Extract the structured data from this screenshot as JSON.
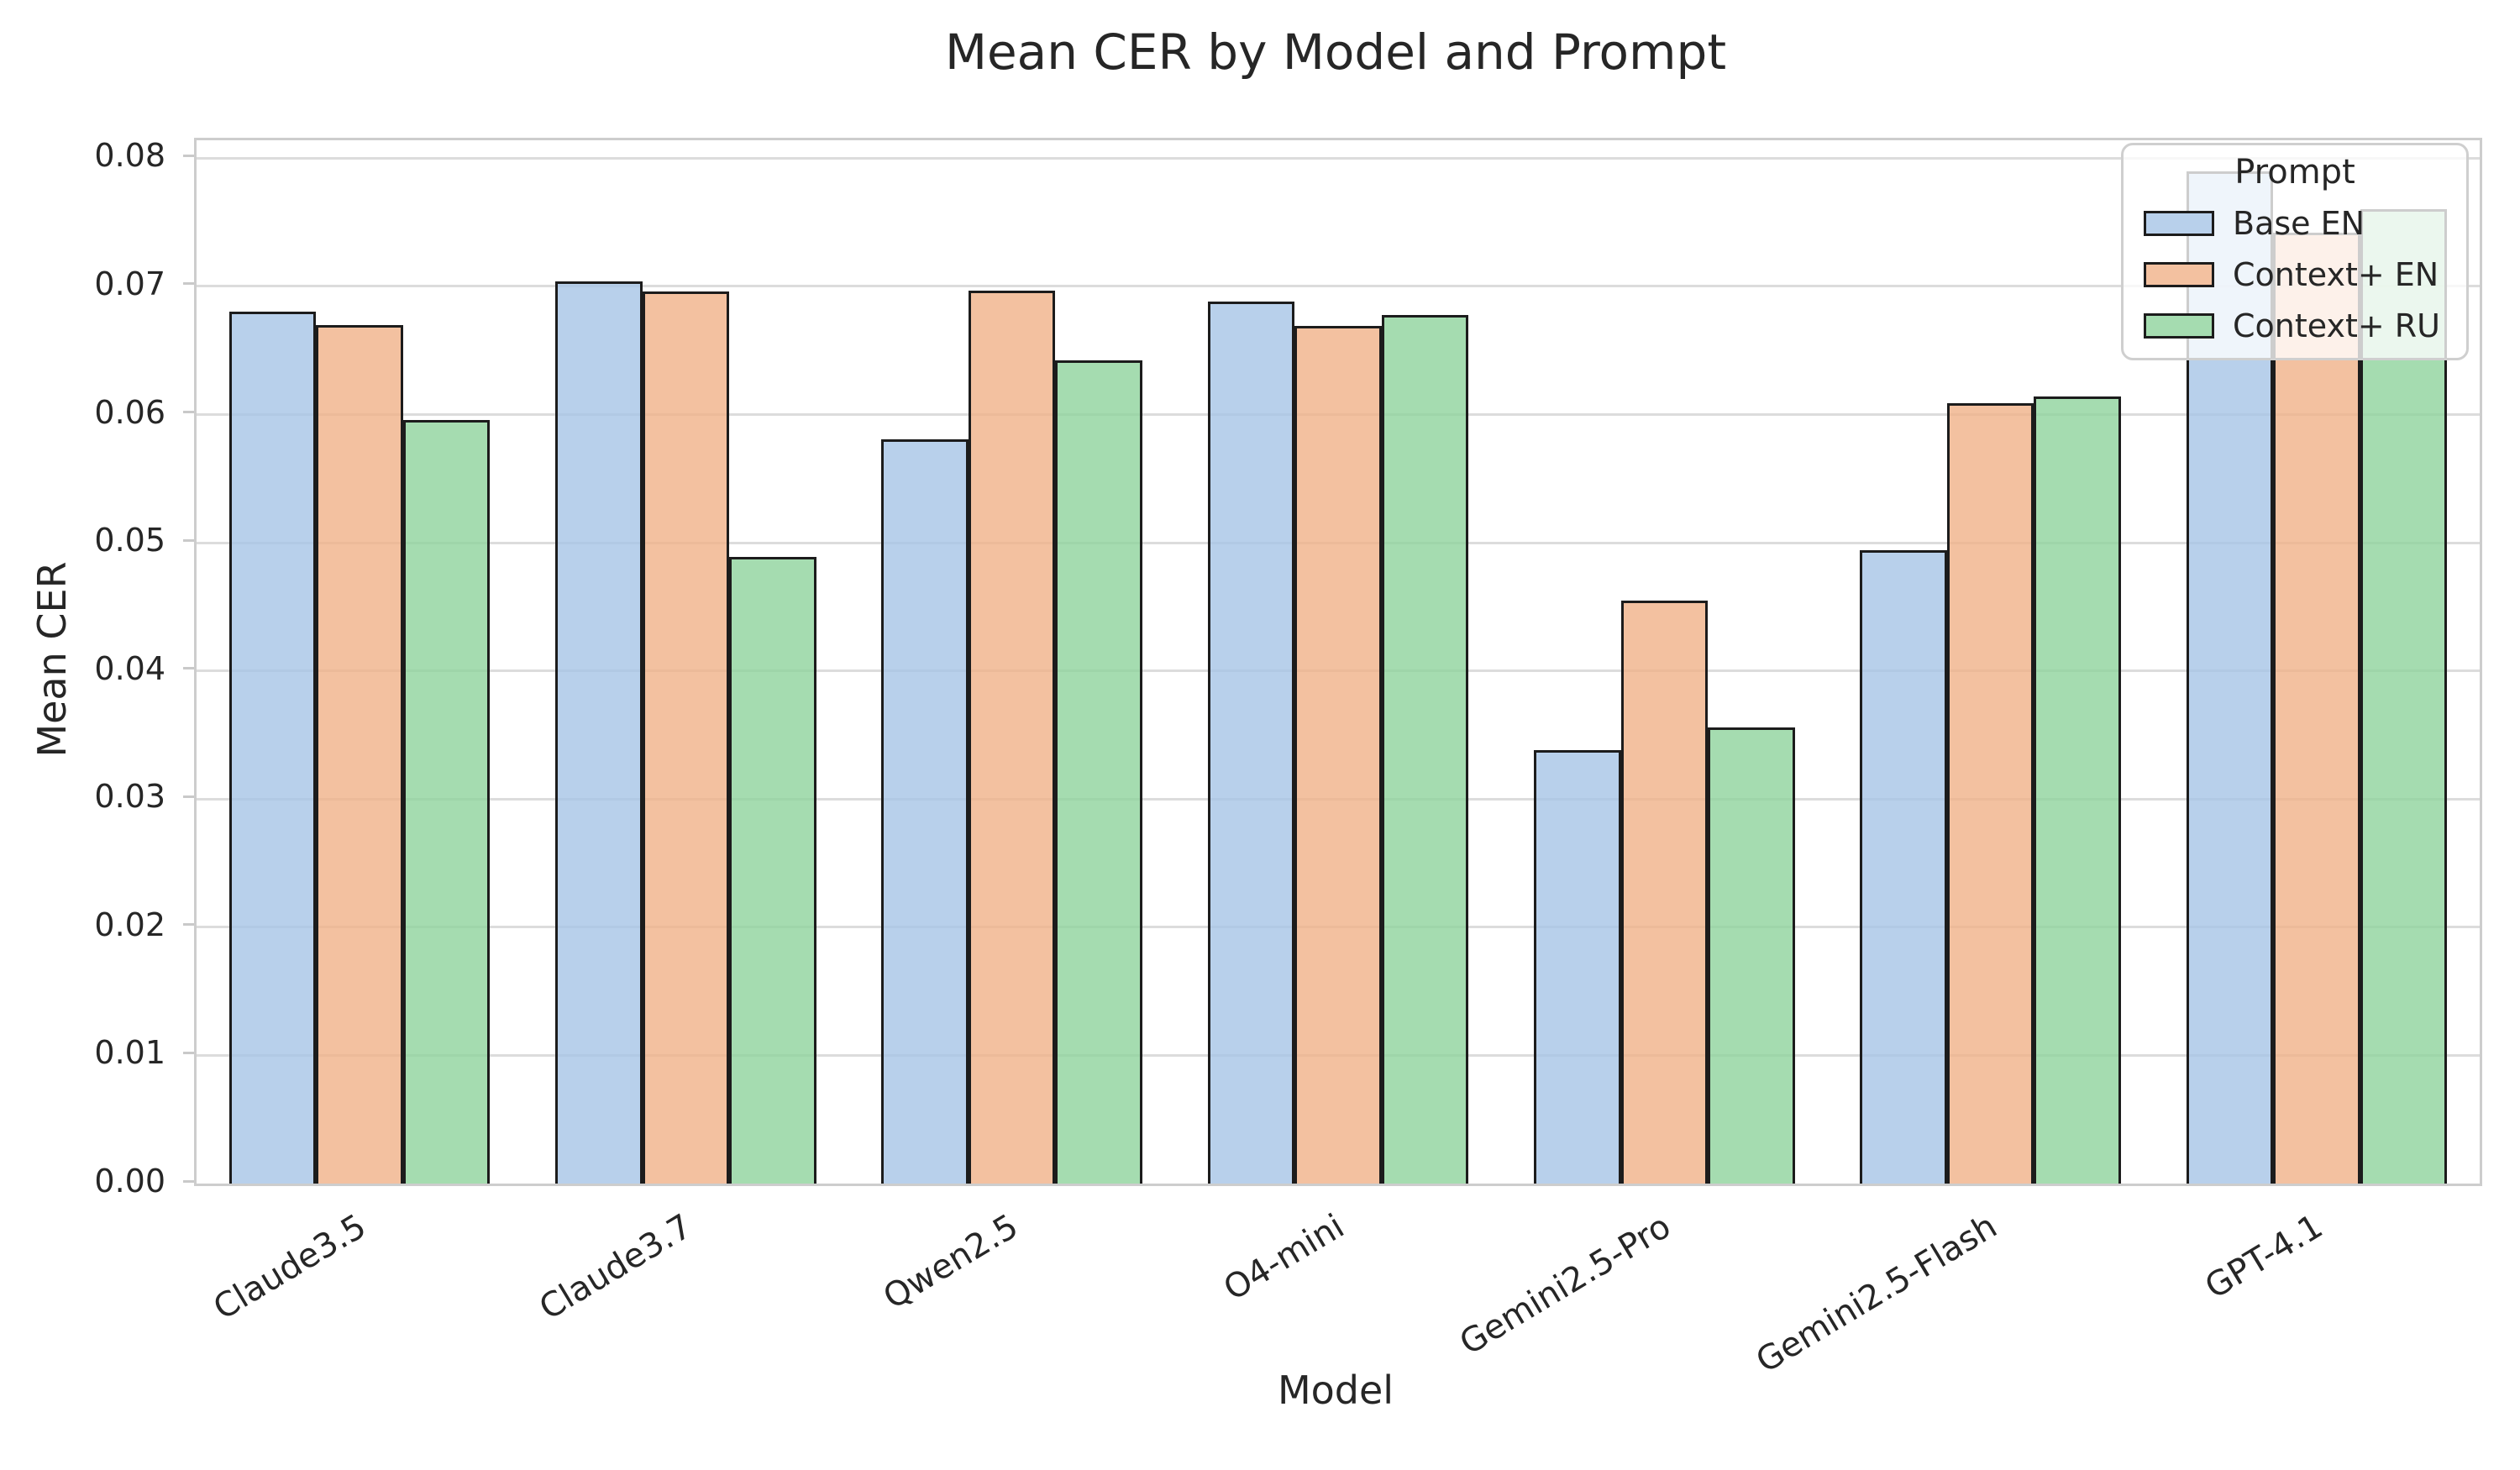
{
  "chart_data": {
    "type": "bar",
    "title": "Mean CER by Model and Prompt",
    "xlabel": "Model",
    "ylabel": "Mean CER",
    "legend_title": "Prompt",
    "legend_position": "upper right",
    "grid": true,
    "ylim": [
      0,
      0.0814
    ],
    "ytick_values": [
      0,
      0.01,
      0.02,
      0.03,
      0.04,
      0.05,
      0.06,
      0.07,
      0.08
    ],
    "yticks": [
      "0.00",
      "0.01",
      "0.02",
      "0.03",
      "0.04",
      "0.05",
      "0.06",
      "0.07",
      "0.08"
    ],
    "categories": [
      "Claude3.5",
      "Claude3.7",
      "Qwen2.5",
      "O4-mini",
      "Gemini2.5-Pro",
      "Gemini2.5-Flash",
      "GPT-4.1"
    ],
    "series": [
      {
        "name": "Base EN",
        "color": "#a6c4e6",
        "legend_color": "#b8d0eb",
        "values": [
          0.068,
          0.0704,
          0.0581,
          0.0688,
          0.0338,
          0.0494,
          0.079
        ]
      },
      {
        "name": "Context+ EN",
        "color": "#f0b288",
        "legend_color": "#f3c1a0",
        "values": [
          0.067,
          0.0696,
          0.0697,
          0.0669,
          0.0455,
          0.0609,
          0.0742
        ]
      },
      {
        "name": "Context+ RU",
        "color": "#8ed39c",
        "legend_color": "#a5dcb0",
        "values": [
          0.0596,
          0.0489,
          0.0642,
          0.0678,
          0.0356,
          0.0614,
          0.076
        ]
      }
    ],
    "style": {
      "bar_alpha": 0.8,
      "bar_edge_color": "#1c1c1c",
      "grid_color": "#dcdcdc",
      "spine_color": "#cdcdcd",
      "text_color": "#262626",
      "background_color": "#ffffff"
    }
  }
}
